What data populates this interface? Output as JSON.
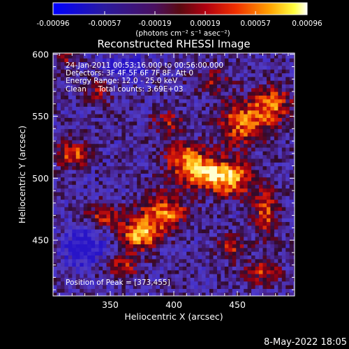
{
  "chart_data": {
    "type": "heatmap",
    "title": "Reconstructed RHESSI Image",
    "xlabel": "Heliocentric X (arcsec)",
    "ylabel": "Heliocentric Y (arcsec)",
    "xlim": [
      305,
      495
    ],
    "ylim": [
      405,
      601
    ],
    "x_ticks": [
      350,
      400,
      450
    ],
    "y_ticks": [
      450,
      500,
      550,
      600
    ],
    "colorbar": {
      "ticks": [
        "-0.00096",
        "-0.00057",
        "-0.00019",
        "0.00019",
        "0.00057",
        "0.00096"
      ],
      "tick_values": [
        -0.00096,
        -0.00057,
        -0.00019,
        0.00019,
        0.00057,
        0.00096
      ],
      "range": [
        -0.00096,
        0.00096
      ],
      "unit_label": "(photons cm⁻² s⁻¹ asec⁻²)"
    },
    "annotations": {
      "time": "24-Jan-2011 00:53:16.000 to 00:56:00.000",
      "detectors": "Detectors: 3F 4F 5F 6F 7F 8F, Att 0",
      "energy": "Energy Range: 12.0 - 25.0 keV",
      "clean": "Clean     Total counts: 3.69E+03",
      "peak": "Position of Peak = [373,455]"
    },
    "peak": [
      373,
      455
    ],
    "grid": false,
    "legend_position": "top"
  },
  "footer": {
    "date": "8-May-2022 18:05"
  }
}
